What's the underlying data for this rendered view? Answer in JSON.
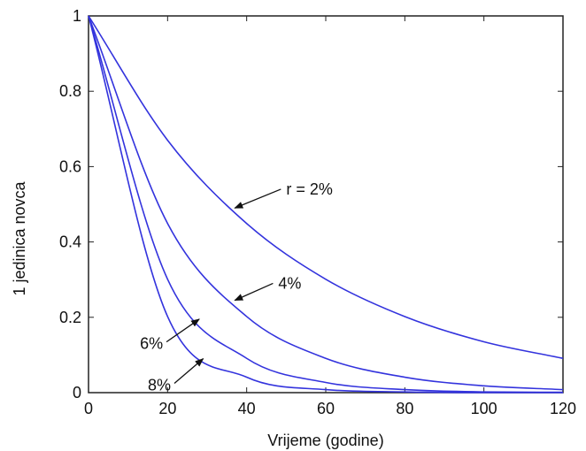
{
  "chart_data": {
    "type": "line",
    "title": "",
    "xlabel": "Vrijeme (godine)",
    "ylabel": "1 jedinica novca",
    "xlim": [
      0,
      120
    ],
    "ylim": [
      0,
      1
    ],
    "x_ticks": [
      "0",
      "20",
      "40",
      "60",
      "80",
      "100",
      "120"
    ],
    "y_ticks": [
      "0",
      "0.2",
      "0.4",
      "0.6",
      "0.8",
      "1"
    ],
    "grid": false,
    "legend": "none",
    "line_color": "#3333dd",
    "series": [
      {
        "rate": 0.02,
        "x": [
          0,
          20,
          40,
          60,
          80,
          100,
          120
        ],
        "values": [
          1.0,
          0.67,
          0.449,
          0.301,
          0.202,
          0.135,
          0.091
        ]
      },
      {
        "rate": 0.04,
        "x": [
          0,
          20,
          40,
          60,
          80,
          100,
          120
        ],
        "values": [
          1.0,
          0.449,
          0.202,
          0.091,
          0.041,
          0.018,
          0.008
        ]
      },
      {
        "rate": 0.06,
        "x": [
          0,
          20,
          40,
          60,
          80,
          100,
          120
        ],
        "values": [
          1.0,
          0.301,
          0.091,
          0.027,
          0.008,
          0.002,
          0.001
        ]
      },
      {
        "rate": 0.08,
        "x": [
          0,
          20,
          40,
          60,
          80,
          100,
          120
        ],
        "values": [
          1.0,
          0.202,
          0.041,
          0.008,
          0.002,
          0.0,
          0.0
        ]
      }
    ],
    "annotations": [
      {
        "text": "r = 2%",
        "label_at": [
          50,
          0.54
        ],
        "arrow_to": [
          37,
          0.49
        ]
      },
      {
        "text": "4%",
        "label_at": [
          48,
          0.29
        ],
        "arrow_to": [
          37,
          0.245
        ]
      },
      {
        "text": "6%",
        "label_at": [
          13,
          0.13
        ],
        "arrow_to": [
          28,
          0.195
        ]
      },
      {
        "text": "8%",
        "label_at": [
          15,
          0.02
        ],
        "arrow_to": [
          29,
          0.09
        ]
      }
    ]
  }
}
